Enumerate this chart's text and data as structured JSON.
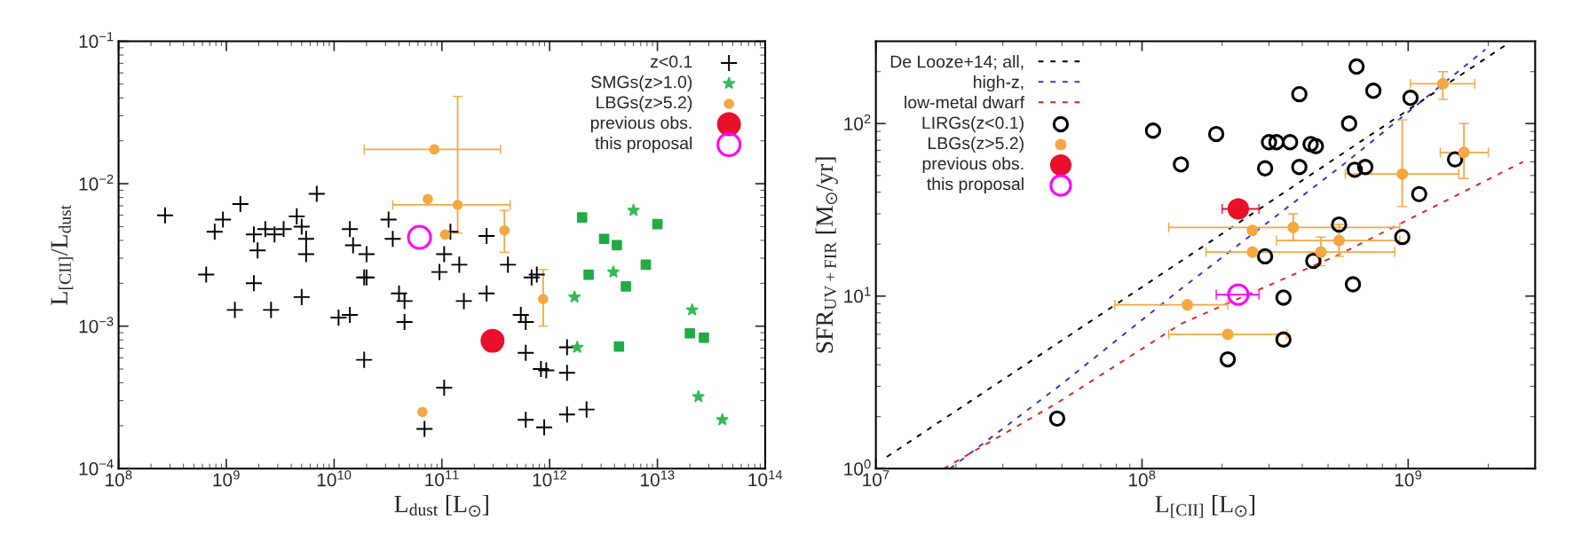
{
  "chart_data": [
    {
      "type": "scatter",
      "xlabel": "L$_{dust}$ [L$_{⊙}$]",
      "ylabel": "L$_{[CII]}$/L$_{dust}$",
      "log": "xy",
      "legend": "top right",
      "grid": false,
      "xlim": [
        100000000.0,
        100000000000000.0
      ],
      "xticks": [
        {
          "value": 100000000.0,
          "label": "10$^{8}$"
        },
        {
          "value": 1000000000.0,
          "label": "10$^{9}$"
        },
        {
          "value": 10000000000.0,
          "label": "10$^{10}$"
        },
        {
          "value": 100000000000.0,
          "label": "10$^{11}$"
        },
        {
          "value": 1000000000000.0,
          "label": "10$^{12}$"
        },
        {
          "value": 10000000000000.0,
          "label": "10$^{13}$"
        },
        {
          "value": 100000000000000.0,
          "label": "10$^{14}$"
        }
      ],
      "ylim": [
        0.0001,
        0.1
      ],
      "yticks": [
        {
          "value": 0.0001,
          "label": "10$^{−4}$"
        },
        {
          "value": 0.001,
          "label": "10$^{−3}$"
        },
        {
          "value": 0.01,
          "label": "10$^{−2}$"
        },
        {
          "value": 0.1,
          "label": "10$^{−1}$"
        }
      ],
      "series": [
        {
          "name": "z<0.1",
          "color": "#000000",
          "marker": "cross",
          "x": [
            270000000.0,
            780000000.0,
            930000000.0,
            1350000000.0,
            1800000000.0,
            2300000000.0,
            2800000000.0,
            3400000000.0,
            4500000000.0,
            5000000000.0,
            5500000000.0,
            6900000000.0,
            5500000000.0,
            1950000000.0,
            14000000000.0,
            15000000000.0,
            20000000000.0,
            32000000000.0,
            35000000000.0,
            120000000000.0,
            105000000000.0,
            145000000000.0,
            260000000000.0,
            410000000000.0,
            760000000000.0,
            650000000.0,
            1800000000.0,
            1200000000.0,
            2600000000.0,
            5000000000.0,
            11000000000.0,
            14000000000.0,
            19000000000.0,
            20000000000.0,
            40000000000.0,
            45000000000.0,
            45000000000.0,
            19000000000.0,
            105000000000.0,
            160000000000.0,
            260000000000.0,
            540000000000.0,
            600000000000.0,
            680000000000.0,
            600000000000.0,
            830000000000.0,
            930000000000.0,
            1450000000000.0,
            1450000000000.0,
            600000000000.0,
            890000000000.0,
            1450000000000.0,
            2200000000000.0,
            69000000000.0,
            95000000000.0
          ],
          "values": [
            0.006,
            0.0046,
            0.0056,
            0.0072,
            0.0044,
            0.0048,
            0.0044,
            0.0048,
            0.0059,
            0.005,
            0.0041,
            0.0085,
            0.0032,
            0.0034,
            0.0048,
            0.0037,
            0.0032,
            0.0056,
            0.0041,
            0.0046,
            0.0032,
            0.0027,
            0.0043,
            0.0027,
            0.0023,
            0.0023,
            0.002,
            0.0013,
            0.0013,
            0.0016,
            0.00115,
            0.0012,
            0.0022,
            0.0022,
            0.0017,
            0.0015,
            0.00107,
            0.00058,
            0.00037,
            0.0015,
            0.0017,
            0.0012,
            0.00107,
            0.0022,
            0.00065,
            0.0005,
            0.00049,
            0.00071,
            0.00047,
            0.00022,
            0.000195,
            0.00024,
            0.00026,
            0.00019,
            0.0024
          ]
        },
        {
          "name": "SMGs(z>1.0)",
          "color": "#33bb55",
          "marker": "star",
          "x": [
            6000000000000.0,
            1700000000000.0,
            1800000000000.0,
            3900000000000.0,
            21000000000000.0,
            24000000000000.0,
            40000000000000.0
          ],
          "values": [
            0.0065,
            0.0016,
            0.00071,
            0.0024,
            0.0013,
            0.00032,
            0.00022
          ]
        },
        {
          "color": "#22aa44",
          "marker": "square",
          "x": [
            2000000000000.0,
            3200000000000.0,
            4200000000000.0,
            10000000000000.0,
            7800000000000.0,
            2300000000000.0,
            5100000000000.0,
            4400000000000.0,
            20000000000000.0,
            27000000000000.0
          ],
          "values": [
            0.0058,
            0.0041,
            0.0037,
            0.0052,
            0.0027,
            0.0023,
            0.0019,
            0.00072,
            0.00089,
            0.00083
          ]
        },
        {
          "name": "LBGs(z>5.2)",
          "color": "#f5a742",
          "marker": "circle",
          "x": [
            85000000000.0,
            74000000000.0,
            107000000000.0,
            140000000000.0,
            380000000000.0,
            870000000000.0,
            66000000000.0
          ],
          "values": [
            0.0174,
            0.0078,
            0.0044,
            0.0071,
            0.0047,
            0.00155,
            0.00025
          ],
          "xerrors": [
            [
              19000000000.0,
              350000000000.0
            ],
            null,
            null,
            [
              35000000000.0,
              430000000000.0
            ],
            null,
            null,
            null
          ],
          "errors": [
            null,
            null,
            null,
            [
              0.0045,
              0.041
            ],
            [
              0.0033,
              0.0065
            ],
            [
              0.001,
              0.0025
            ],
            null
          ]
        },
        {
          "name": "previous obs.",
          "color": "#e8102a",
          "marker": "circle",
          "x": [
            295000000000.0
          ],
          "values": [
            0.00079
          ]
        },
        {
          "name": "this proposal",
          "color": "#ff00ff",
          "marker": "circle",
          "x": [
            62000000000.0
          ],
          "values": [
            0.0042
          ]
        }
      ]
    },
    {
      "type": "scatter",
      "xlabel": "L$_{[CII]}$ [L$_{⊙}$]",
      "ylabel": "SFR$_{UV+FIR}$ [M$_{⊙}$/yr]",
      "log": "xy",
      "legend": "top left",
      "grid": false,
      "xlim": [
        10000000.0,
        3000000000.0
      ],
      "xticks": [
        {
          "value": 10000000.0,
          "label": "10$^{7}$"
        },
        {
          "value": 100000000.0,
          "label": "10$^{8}$"
        },
        {
          "value": 1000000000.0,
          "label": "10$^{9}$"
        }
      ],
      "ylim": [
        1,
        300
      ],
      "yticks": [
        {
          "value": 1,
          "label": "10$^{0}$"
        },
        {
          "value": 10,
          "label": "10$^{1}$"
        },
        {
          "value": 100,
          "label": "10$^{2}$"
        }
      ],
      "series": [
        {
          "name": "De Looze+14; all,",
          "type": "line",
          "line_style": "dashed",
          "color": "#000000",
          "x": [
            11000000.0,
            2300000000.0
          ],
          "values": [
            1.17,
            282
          ]
        },
        {
          "name": "high-z,",
          "type": "line",
          "line_style": "dashed",
          "color": "#3333cc",
          "x": [
            19000000.0,
            48000000.0,
            140000000.0,
            580000000.0,
            1950000000.0
          ],
          "values": [
            1.0,
            2.95,
            11,
            59,
            269
          ]
        },
        {
          "name": "low-metal dwarf",
          "type": "line",
          "line_style": "dashed",
          "color": "#dd2222",
          "x": [
            18000000.0,
            48000000.0,
            140000000.0,
            550000000.0,
            2700000000.0
          ],
          "values": [
            1.0,
            2.4,
            6.9,
            17.4,
            60
          ]
        },
        {
          "name": "LIRGs(z<0.1)",
          "color": "#000000",
          "marker": "circle",
          "x": [
            640000000.0,
            390000000.0,
            740000000.0,
            1020000000.0,
            600000000.0,
            110000000.0,
            190000000.0,
            300000000.0,
            320000000.0,
            360000000.0,
            430000000.0,
            450000000.0,
            140000000.0,
            290000000.0,
            390000000.0,
            630000000.0,
            690000000.0,
            1500000000.0,
            1100000000.0,
            550000000.0,
            950000000.0,
            290000000.0,
            440000000.0,
            620000000.0,
            340000000.0,
            340000000.0,
            210000000.0,
            48000000.0
          ],
          "values": [
            214,
            148,
            155,
            141,
            100,
            91,
            87,
            78,
            78,
            78,
            76,
            74,
            58,
            55,
            56,
            54,
            56,
            62,
            39,
            26,
            22,
            17,
            16,
            11.7,
            9.8,
            5.6,
            4.3,
            1.95
          ]
        },
        {
          "name": "LBGs(z>5.2)",
          "color": "#f5a742",
          "marker": "circle",
          "x": [
            1350000000.0,
            1620000000.0,
            950000000.0,
            370000000.0,
            550000000.0,
            260000000.0,
            260000000.0,
            470000000.0,
            148000000.0,
            210000000.0
          ],
          "values": [
            170,
            68,
            51,
            25,
            21,
            24,
            18,
            18,
            8.9,
            6.0
          ],
          "xerrors": [
            [
              1020000000.0,
              1780000000.0
            ],
            [
              1320000000.0,
              2000000000.0
            ],
            [
              580000000.0,
              1550000000.0
            ],
            [
              126000000.0,
              930000000.0
            ],
            [
              320000000.0,
              930000000.0
            ],
            null,
            [
              174000000.0,
              890000000.0
            ],
            null,
            [
              79000000.0,
              210000000.0
            ],
            [
              126000000.0,
              350000000.0
            ]
          ],
          "errors": [
            [
              138,
              200
            ],
            [
              48,
              100
            ],
            [
              33,
              105
            ],
            [
              21,
              30
            ],
            [
              17,
              26
            ],
            null,
            null,
            [
              15,
              22
            ],
            null,
            null
          ]
        },
        {
          "name": "previous obs.",
          "color": "#e8102a",
          "marker": "circle",
          "x": [
            230000000.0
          ],
          "values": [
            32
          ],
          "xerrors": [
            [
              200000000.0,
              275000000.0
            ]
          ]
        },
        {
          "name": "this proposal",
          "color": "#ff00ff",
          "marker": "circle",
          "x": [
            230000000.0
          ],
          "values": [
            10.2
          ],
          "xerrors": [
            [
              190000000.0,
              275000000.0
            ]
          ]
        }
      ]
    }
  ]
}
